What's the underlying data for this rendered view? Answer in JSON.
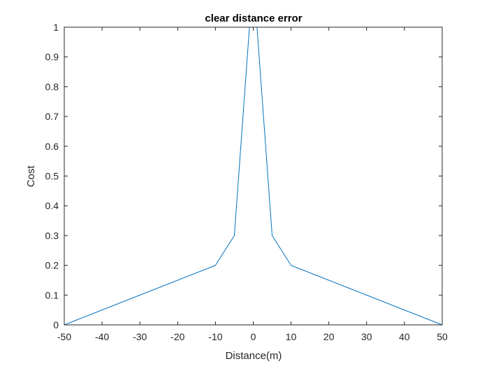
{
  "chart_data": {
    "type": "line",
    "title": "clear distance error",
    "xlabel": "Distance(m)",
    "ylabel": "Cost",
    "xlim": [
      -50,
      50
    ],
    "ylim": [
      0,
      1
    ],
    "xticks": [
      -50,
      -40,
      -30,
      -20,
      -10,
      0,
      10,
      20,
      30,
      40,
      50
    ],
    "yticks": [
      0,
      0.1,
      0.2,
      0.3,
      0.4,
      0.5,
      0.6,
      0.7,
      0.8,
      0.9,
      1
    ],
    "grid": false,
    "series": [
      {
        "color": "#0072BD",
        "x": [
          -50,
          -10,
          -5,
          -1,
          0,
          1,
          5,
          10,
          50
        ],
        "y": [
          0,
          0.2,
          0.3,
          1,
          1,
          1,
          0.3,
          0.2,
          0
        ]
      }
    ]
  }
}
